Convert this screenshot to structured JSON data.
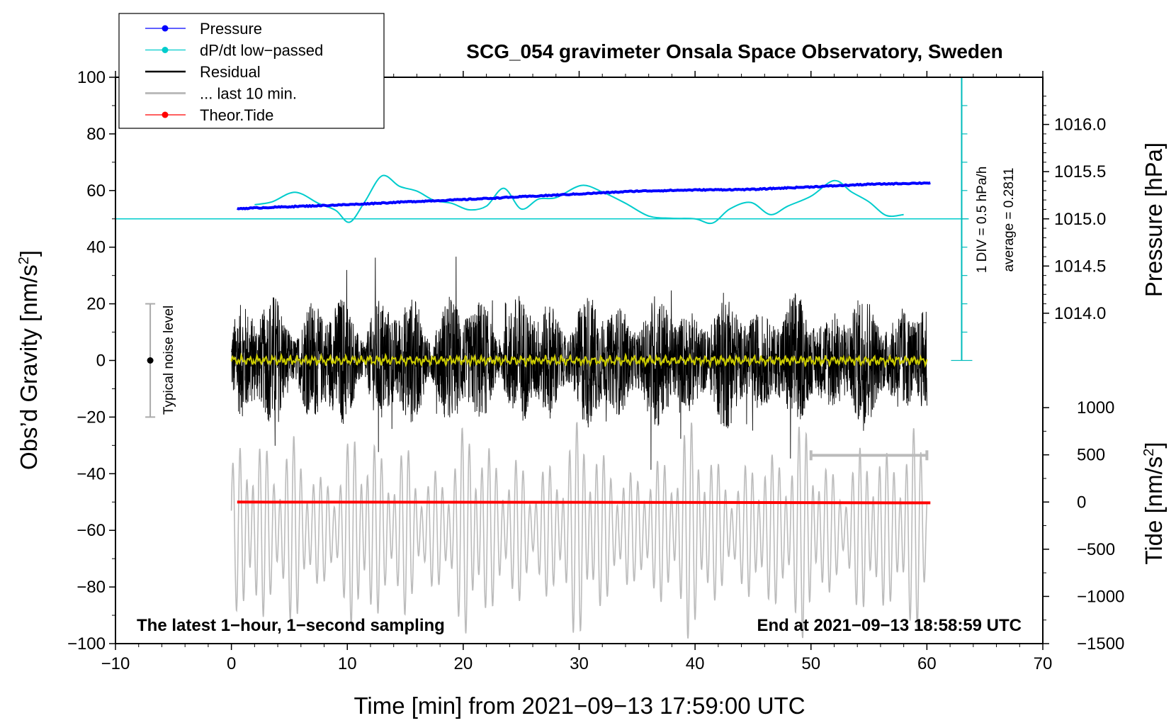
{
  "chart_data": {
    "type": "line",
    "title": "SCG_054 gravimeter Onsala Space Observatory, Sweden",
    "xlabel": "Time [min] from 2021−09−13 17:59:00 UTC",
    "ylabel_main": "Obs’d Gravity [nm/s",
    "ylabel_sup": "2",
    "ylabel_close": "]",
    "ylabel_pressure": "Pressure [hPa]",
    "ylabel_tide": "Tide [nm/s",
    "ylabel_tide_sup": "2",
    "ylabel_tide_close": "]",
    "xlim": [
      -10,
      70
    ],
    "ylim": [
      -100,
      100
    ],
    "x_ticks": [
      "−10",
      "0",
      "10",
      "20",
      "30",
      "40",
      "50",
      "60",
      "70"
    ],
    "x_tick_values": [
      -10,
      0,
      10,
      20,
      30,
      40,
      50,
      60,
      70
    ],
    "y_ticks": [
      "100",
      "80",
      "60",
      "40",
      "20",
      "0",
      "−20",
      "−40",
      "−60",
      "−80",
      "−100"
    ],
    "y_tick_values": [
      100,
      80,
      60,
      40,
      20,
      0,
      -20,
      -40,
      -60,
      -80,
      -100
    ],
    "pressure_ticks": [
      "1016.0",
      "1015.5",
      "1015.0",
      "1014.5",
      "1014.0"
    ],
    "pressure_tick_values": [
      1016.0,
      1015.5,
      1015.0,
      1014.5,
      1014.0
    ],
    "pressure_axis": {
      "hpa_at_y50": 1015.0,
      "hpa_per_y_unit": 0.03
    },
    "tide_ticks": [
      "1000",
      "500",
      "0",
      "−500",
      "−1000",
      "−1500"
    ],
    "tide_tick_values": [
      1000,
      500,
      0,
      -500,
      -1000,
      -1500
    ],
    "tide_axis": {
      "nms2_at_y_minus50": 0,
      "nms2_per_y_unit": 30
    },
    "legend": [
      {
        "label": "Pressure",
        "color": "#0000ff",
        "marker": true
      },
      {
        "label": "dP/dt low−passed",
        "color": "#00cccc",
        "marker": true
      },
      {
        "label": "Residual",
        "color": "#000000",
        "marker": false
      },
      {
        "label": "... last 10 min.",
        "color": "#bbbbbb",
        "marker": false
      },
      {
        "label": "Theor.Tide",
        "color": "#ff0000",
        "marker": true
      }
    ],
    "noise_label": "Typical noise level",
    "noise_level": {
      "x": -7,
      "center": 0,
      "half_range": 20
    },
    "scale_bar": {
      "x": 63,
      "y_top": 100,
      "y_bottom": 0,
      "divisions": 10,
      "y_baseline": 50
    },
    "scale_label": "1 DIV = 0.5 hPa/h",
    "average_label": "average = 0.2811",
    "bottom_left_note": "The latest 1−hour, 1−second sampling",
    "bottom_right_note": "End at 2021−09−13 18:58:59 UTC",
    "last10_bar": {
      "x_start": 50,
      "x_end": 60,
      "y": -33.5
    },
    "series": [
      {
        "name": "Pressure",
        "color": "#0000ff",
        "x": [
          0.5,
          5,
          10,
          15,
          20,
          25,
          30,
          35,
          40,
          45,
          50,
          55,
          60.3
        ],
        "y": [
          53.6,
          54.3,
          55.0,
          56.0,
          56.8,
          57.8,
          58.8,
          59.8,
          60.2,
          60.4,
          61.3,
          62.2,
          62.7
        ]
      },
      {
        "name": "dP/dt low-passed",
        "color": "#00cccc",
        "x": [
          2,
          3.5,
          5.5,
          7.5,
          9,
          10.2,
          11.5,
          13,
          14.5,
          16,
          17.5,
          19,
          20.5,
          22,
          23.5,
          25,
          26.5,
          28,
          30.2,
          32,
          34,
          36,
          38,
          40,
          41.5,
          43,
          44.8,
          46.5,
          48,
          50,
          52,
          53.5,
          55,
          56.5,
          58
        ],
        "y": [
          55,
          56,
          59.4,
          55.5,
          53,
          48.8,
          56,
          65.2,
          61.5,
          59.8,
          56.5,
          55.5,
          53.2,
          54.5,
          60.8,
          53.5,
          57,
          57.5,
          61.8,
          59.5,
          55.5,
          51,
          50.2,
          50,
          48.5,
          53.5,
          55.8,
          51.5,
          54.5,
          58,
          63.5,
          59.5,
          56,
          51.2,
          51.5
        ]
      },
      {
        "name": "Residual",
        "color": "#000000",
        "x_range": [
          0,
          60
        ],
        "y_range_min": [
          -39,
          0
        ],
        "y_range_max": [
          0,
          43
        ],
        "typical_amplitude": 20
      },
      {
        "name": "... last 10 min.",
        "color": "#bbbbbb",
        "x_range": [
          0,
          60
        ],
        "center": -60,
        "amplitude_max": 37
      },
      {
        "name": "Theor.Tide",
        "color": "#ff0000",
        "x": [
          0.5,
          30,
          60.3
        ],
        "y": [
          -50,
          -50.1,
          -50.3
        ]
      },
      {
        "name": "Residual low-passed",
        "color": "#cccc00",
        "x_range": [
          0,
          60
        ],
        "center": 0
      }
    ]
  }
}
